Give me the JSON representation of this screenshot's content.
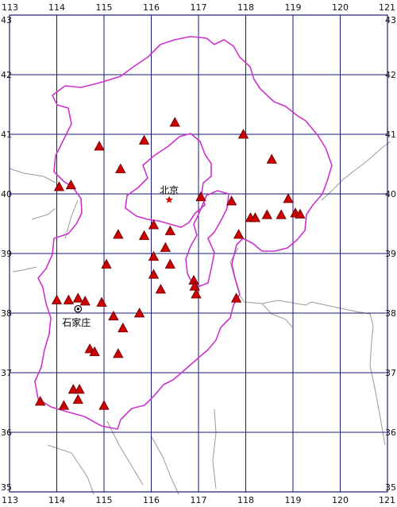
{
  "lon_range": [
    113,
    121
  ],
  "lat_range": [
    35,
    43
  ],
  "lon_ticks": [
    "113",
    "114",
    "115",
    "116",
    "117",
    "118",
    "119",
    "120",
    "121"
  ],
  "lat_ticks": [
    "35",
    "36",
    "37",
    "38",
    "39",
    "40",
    "41",
    "42",
    "43"
  ],
  "colors": {
    "grid": "#1a1a7a",
    "province": "#cc33cc",
    "coast": "#999999",
    "station_fill": "#cc0000",
    "station_stroke": "#660000",
    "capital_star": "#dd0000"
  },
  "cities": [
    {
      "name": "北京",
      "lon": 116.38,
      "lat": 39.9,
      "symbol": "star-icon"
    },
    {
      "name": "石家庄",
      "lon": 114.45,
      "lat": 38.07,
      "symbol": "circle-dot-icon"
    }
  ],
  "stations": [
    [
      116.5,
      41.2
    ],
    [
      117.95,
      41.0
    ],
    [
      114.9,
      40.8
    ],
    [
      115.85,
      40.9
    ],
    [
      118.55,
      40.58
    ],
    [
      115.35,
      40.42
    ],
    [
      114.05,
      40.12
    ],
    [
      114.3,
      40.15
    ],
    [
      117.05,
      39.95
    ],
    [
      117.7,
      39.88
    ],
    [
      118.9,
      39.92
    ],
    [
      118.1,
      39.6
    ],
    [
      118.2,
      39.6
    ],
    [
      118.45,
      39.65
    ],
    [
      118.75,
      39.65
    ],
    [
      119.05,
      39.68
    ],
    [
      119.15,
      39.66
    ],
    [
      117.85,
      39.32
    ],
    [
      115.3,
      39.32
    ],
    [
      115.85,
      39.3
    ],
    [
      116.05,
      39.48
    ],
    [
      116.4,
      39.38
    ],
    [
      116.3,
      39.1
    ],
    [
      116.05,
      38.95
    ],
    [
      115.05,
      38.82
    ],
    [
      116.4,
      38.82
    ],
    [
      116.05,
      38.65
    ],
    [
      116.9,
      38.55
    ],
    [
      116.92,
      38.45
    ],
    [
      116.95,
      38.32
    ],
    [
      116.2,
      38.4
    ],
    [
      117.8,
      38.25
    ],
    [
      114.0,
      38.22
    ],
    [
      114.25,
      38.22
    ],
    [
      114.45,
      38.25
    ],
    [
      114.6,
      38.2
    ],
    [
      114.95,
      38.18
    ],
    [
      115.75,
      38.0
    ],
    [
      115.2,
      37.95
    ],
    [
      115.4,
      37.75
    ],
    [
      114.7,
      37.4
    ],
    [
      114.8,
      37.35
    ],
    [
      115.3,
      37.32
    ],
    [
      114.35,
      36.72
    ],
    [
      114.48,
      36.72
    ],
    [
      114.45,
      36.55
    ],
    [
      114.15,
      36.45
    ],
    [
      115.0,
      36.45
    ],
    [
      113.65,
      36.52
    ]
  ]
}
